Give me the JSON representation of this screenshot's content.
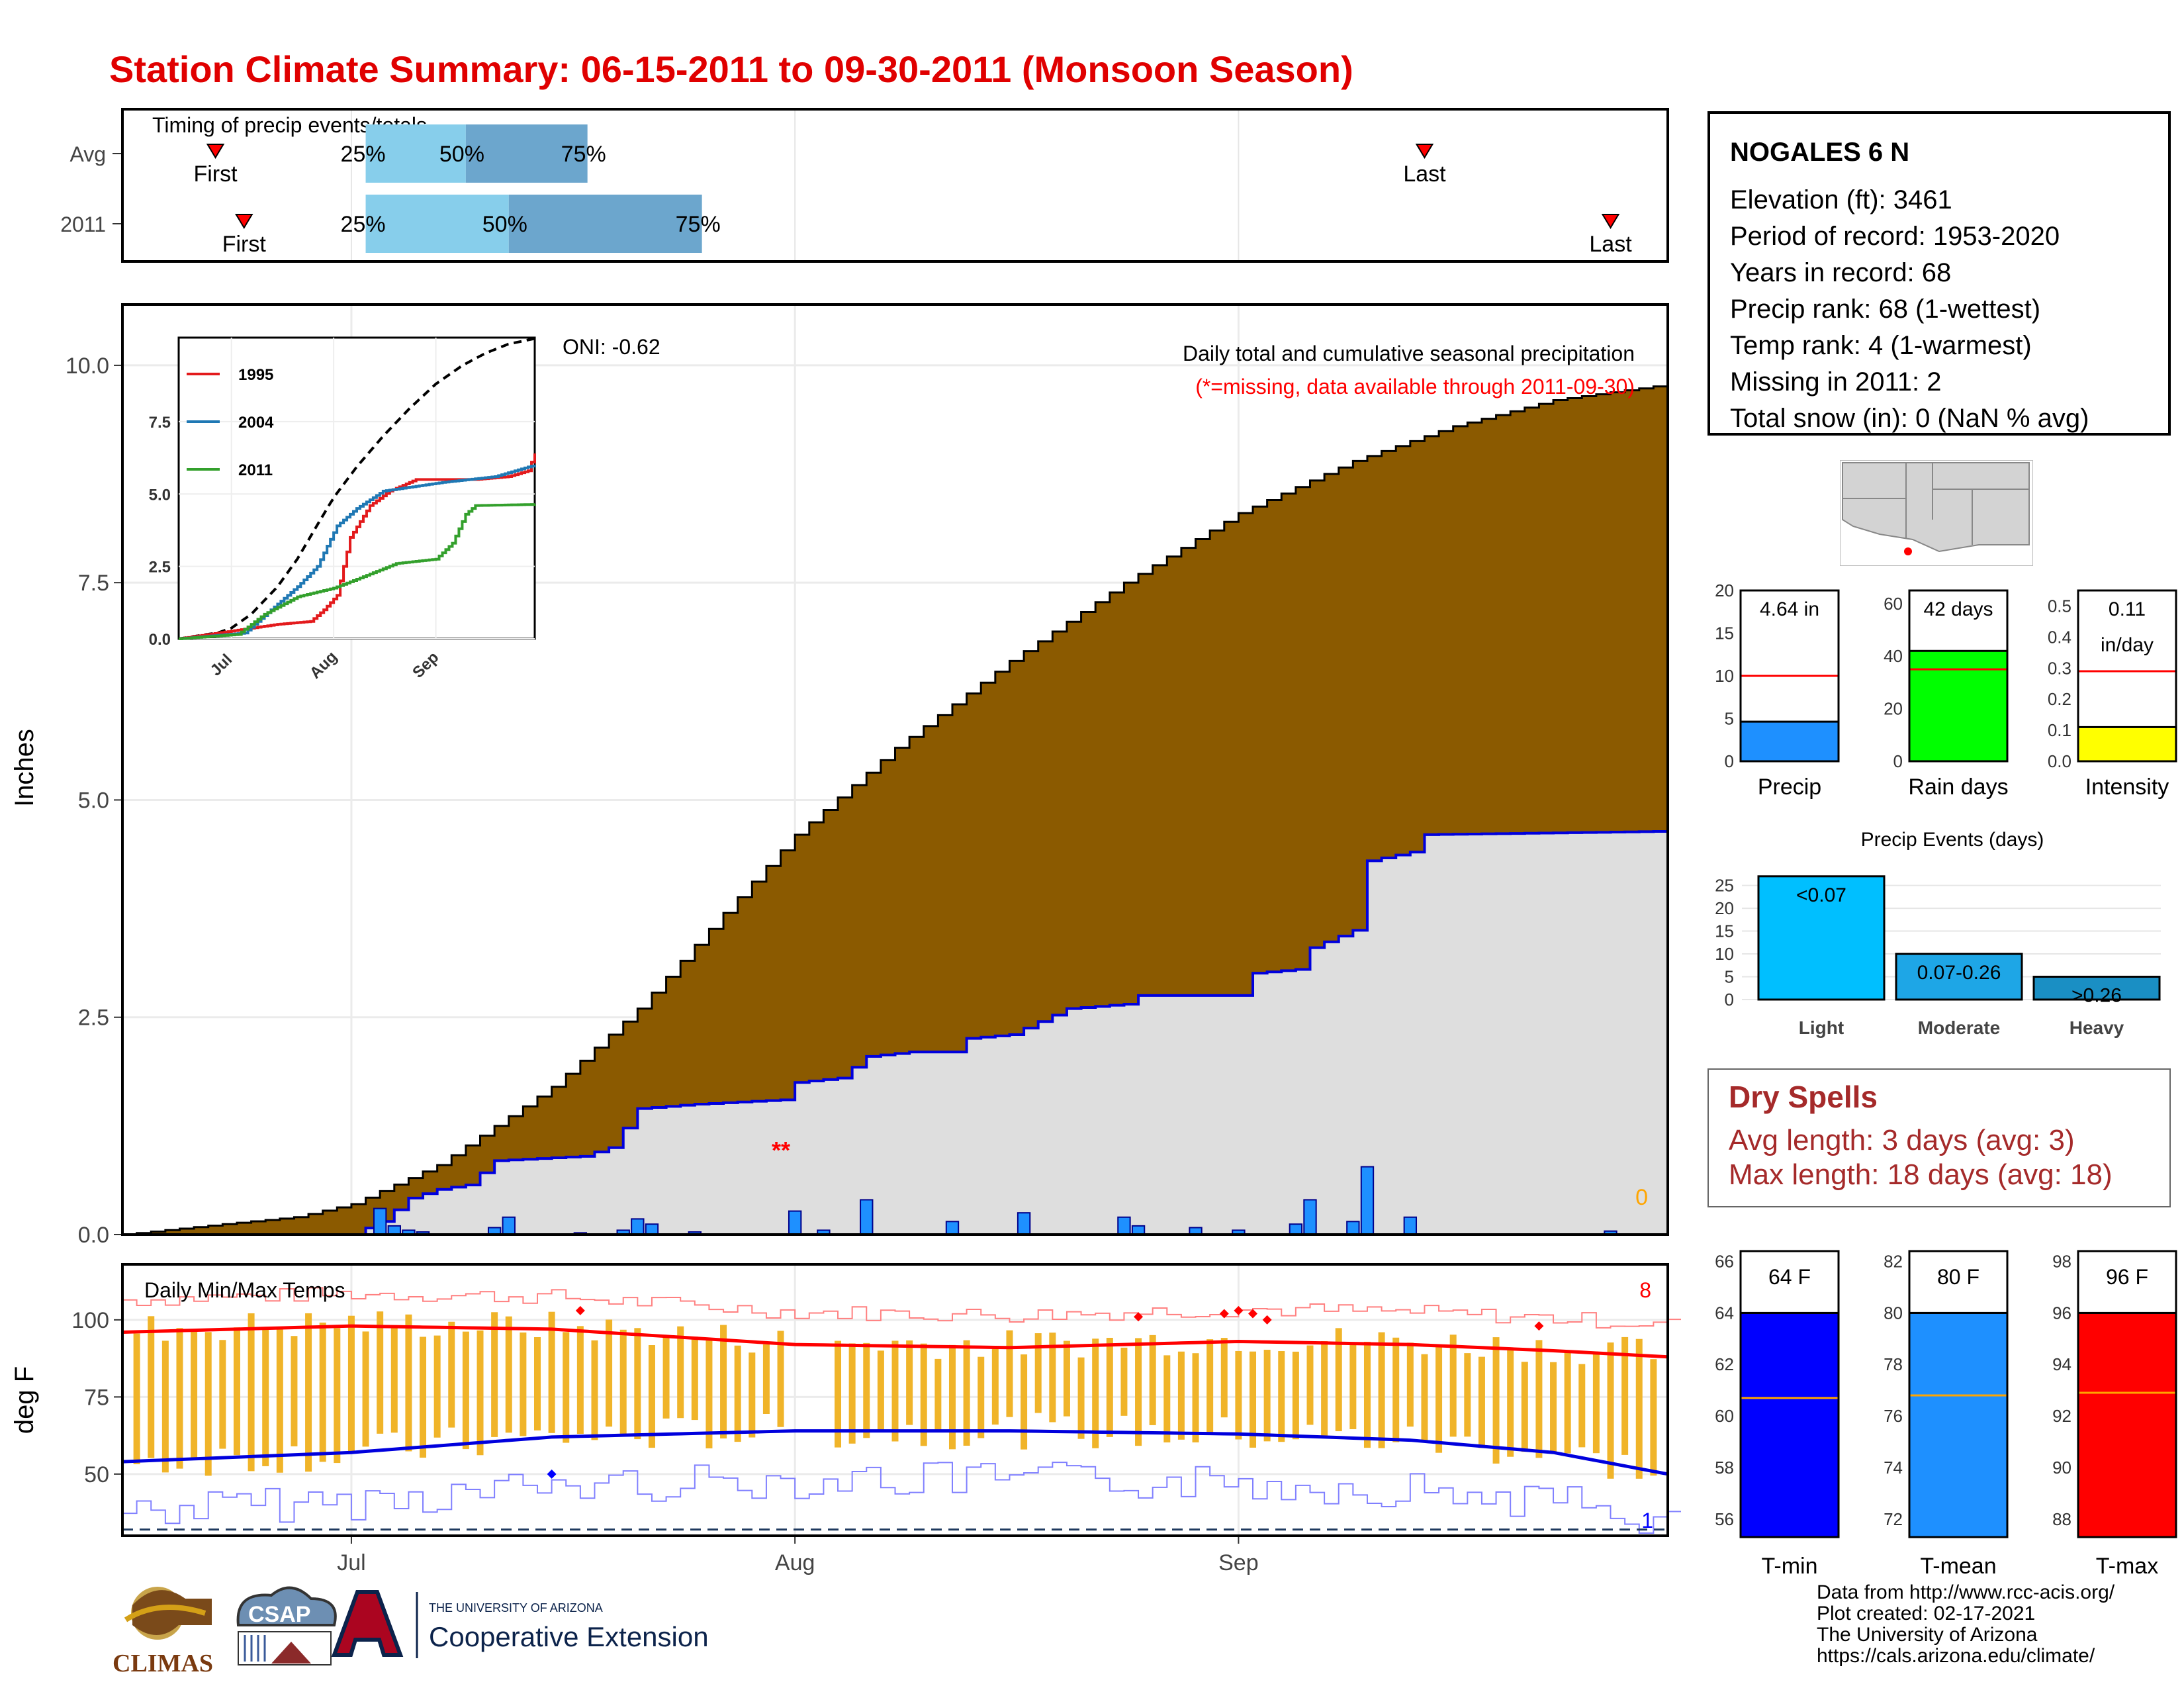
{
  "title": "Station Climate Summary: 06-15-2011 to 09-30-2011 (Monsoon Season)",
  "timing": {
    "label": "Timing of precip events/totals",
    "rows": [
      {
        "name": "Avg",
        "first": "First",
        "last": "Last",
        "p25": "25%",
        "p50": "50%",
        "p75": "75%"
      },
      {
        "name": "2011",
        "first": "First",
        "last": "Last",
        "p25": "25%",
        "p50": "50%",
        "p75": "75%"
      }
    ]
  },
  "station": {
    "name": "NOGALES 6 N",
    "lines": [
      "Elevation (ft): 3461",
      "Period of record: 1953-2020",
      "Years in record: 68",
      "Precip rank: 68 (1-wettest)",
      "Temp rank: 4 (1-warmest)",
      "Missing in 2011: 2",
      "Total snow (in): 0 (NaN % avg)"
    ]
  },
  "precip_panel": {
    "title": "Daily total and cumulative seasonal precipitation",
    "note": "(*=missing, data available through 2011-09-30)",
    "oni": "ONI: -0.62",
    "ylabel": "Inches",
    "yticks": [
      "0.0",
      "2.5",
      "5.0",
      "7.5",
      "10.0"
    ],
    "missing_marker": "**",
    "zero_label": "0"
  },
  "inset": {
    "legend": [
      {
        "name": "1995",
        "color": "#e31a1c"
      },
      {
        "name": "2004",
        "color": "#1f78b4"
      },
      {
        "name": "2011",
        "color": "#33a02c"
      }
    ],
    "yticks": [
      "0.0",
      "2.5",
      "5.0",
      "7.5"
    ],
    "xticks": [
      "Jul",
      "Aug",
      "Sep"
    ]
  },
  "temp_panel": {
    "title": "Daily Min/Max Temps",
    "ylabel": "deg F",
    "yticks": [
      "50",
      "75",
      "100"
    ],
    "xticks": [
      "Jul",
      "Aug",
      "Sep"
    ],
    "count_high": "8",
    "count_low": "1"
  },
  "mini_bars": [
    {
      "label": "Precip",
      "value_text": "4.64 in",
      "color": "#1e90ff",
      "value": 4.64,
      "avg": 10,
      "ymax": 20,
      "yticks": [
        "0",
        "5",
        "10",
        "15",
        "20"
      ]
    },
    {
      "label": "Rain days",
      "value_text": "42 days",
      "color": "#00ff00",
      "value": 42,
      "avg": 35,
      "ymax": 65,
      "yticks": [
        "0",
        "20",
        "40",
        "60"
      ]
    },
    {
      "label": "Intensity",
      "value_text": "0.11",
      "value_unit": "in/day",
      "color": "#ffff00",
      "value": 0.11,
      "avg": 0.29,
      "ymax": 0.55,
      "yticks": [
        "0.0",
        "0.1",
        "0.2",
        "0.3",
        "0.4",
        "0.5"
      ]
    }
  ],
  "events": {
    "title": "Precip Events (days)",
    "categories": [
      "Light",
      "Moderate",
      "Heavy"
    ],
    "labels": [
      "<0.07",
      "0.07-0.26",
      ">0.26"
    ],
    "values": [
      27,
      10,
      5
    ],
    "colors": [
      "#00bfff",
      "#1ea6e6",
      "#1a8fc4"
    ],
    "yticks": [
      "0",
      "5",
      "10",
      "15",
      "20",
      "25"
    ]
  },
  "dry_spells": {
    "title": "Dry Spells",
    "avg_line": "Avg length: 3 days (avg: 3)",
    "max_line": "Max length: 18 days (avg: 18)"
  },
  "temp_bars": [
    {
      "label": "T-min",
      "value_text": "64 F",
      "color": "#0000ff",
      "value": 64,
      "avg": 60.7,
      "ymin": 55.3,
      "ymax": 66.4,
      "yticks": [
        "56",
        "58",
        "60",
        "62",
        "64",
        "66"
      ]
    },
    {
      "label": "T-mean",
      "value_text": "80 F",
      "color": "#1e90ff",
      "value": 80,
      "avg": 76.8,
      "ymin": 71.3,
      "ymax": 82.4,
      "yticks": [
        "72",
        "74",
        "76",
        "78",
        "80",
        "82"
      ]
    },
    {
      "label": "T-max",
      "value_text": "96 F",
      "color": "#ff0000",
      "value": 96,
      "avg": 92.9,
      "ymin": 87.3,
      "ymax": 98.4,
      "yticks": [
        "88",
        "90",
        "92",
        "94",
        "96",
        "98"
      ]
    }
  ],
  "logos": {
    "climas": "CLIMAS",
    "csap": "CSAP",
    "ua_small": "THE UNIVERSITY OF ARIZONA",
    "ua_big": "Cooperative Extension"
  },
  "credits": [
    "Data from http://www.rcc-acis.org/",
    "Plot created: 02-17-2021",
    "The University of Arizona",
    "https://cals.arizona.edu/climate/"
  ],
  "chart_data": [
    {
      "type": "area",
      "title": "Daily total and cumulative seasonal precipitation",
      "ylabel": "Inches",
      "ylim": [
        0,
        10.7
      ],
      "x": [
        "06-15",
        "07-01",
        "07-15",
        "08-01",
        "08-15",
        "09-01",
        "09-15",
        "09-30"
      ],
      "series": [
        {
          "name": "Avg",
          "values": [
            0.0,
            0.35,
            1.55,
            4.6,
            7.0,
            8.3,
            9.2,
            9.75
          ]
        },
        {
          "name": "2011",
          "values": [
            0.0,
            0.15,
            0.88,
            1.5,
            2.3,
            3.0,
            4.35,
            4.64
          ]
        }
      ]
    },
    {
      "type": "line",
      "xticks": [
        "Jul",
        "Aug",
        "Sep"
      ],
      "ylim": [
        0,
        10.4
      ],
      "series": [
        {
          "name": "1995",
          "values": [
            0.0,
            0.0,
            0.9,
            3.9,
            5.2,
            5.5,
            5.6,
            5.6,
            6.0
          ]
        },
        {
          "name": "2004",
          "values": [
            0.0,
            0.1,
            1.1,
            2.5,
            5.1,
            5.4,
            5.5,
            5.9,
            6.3
          ]
        },
        {
          "name": "2011",
          "values": [
            0.0,
            0.1,
            0.8,
            2.2,
            2.4,
            3.2,
            4.4,
            4.6,
            4.64
          ]
        }
      ]
    },
    {
      "type": "line",
      "title": "Daily Min/Max Temps",
      "ylabel": "deg F",
      "ylim": [
        30,
        118
      ],
      "xticks": [
        "Jul",
        "Aug",
        "Sep"
      ],
      "series": [
        {
          "name": "Avg max",
          "values": [
            96,
            98,
            97,
            92,
            91,
            93,
            92,
            90,
            88
          ]
        },
        {
          "name": "Avg min",
          "values": [
            54,
            57,
            62,
            64,
            64,
            63,
            61,
            57,
            50
          ]
        }
      ]
    },
    {
      "type": "bar",
      "title": "Precip Events (days)",
      "categories": [
        "Light",
        "Moderate",
        "Heavy"
      ],
      "values": [
        27,
        10,
        5
      ]
    },
    {
      "type": "bar",
      "categories": [
        "Precip",
        "Rain days",
        "Intensity"
      ],
      "values": [
        4.64,
        42,
        0.11
      ]
    },
    {
      "type": "bar",
      "categories": [
        "T-min",
        "T-mean",
        "T-max"
      ],
      "values": [
        64,
        80,
        96
      ]
    }
  ]
}
